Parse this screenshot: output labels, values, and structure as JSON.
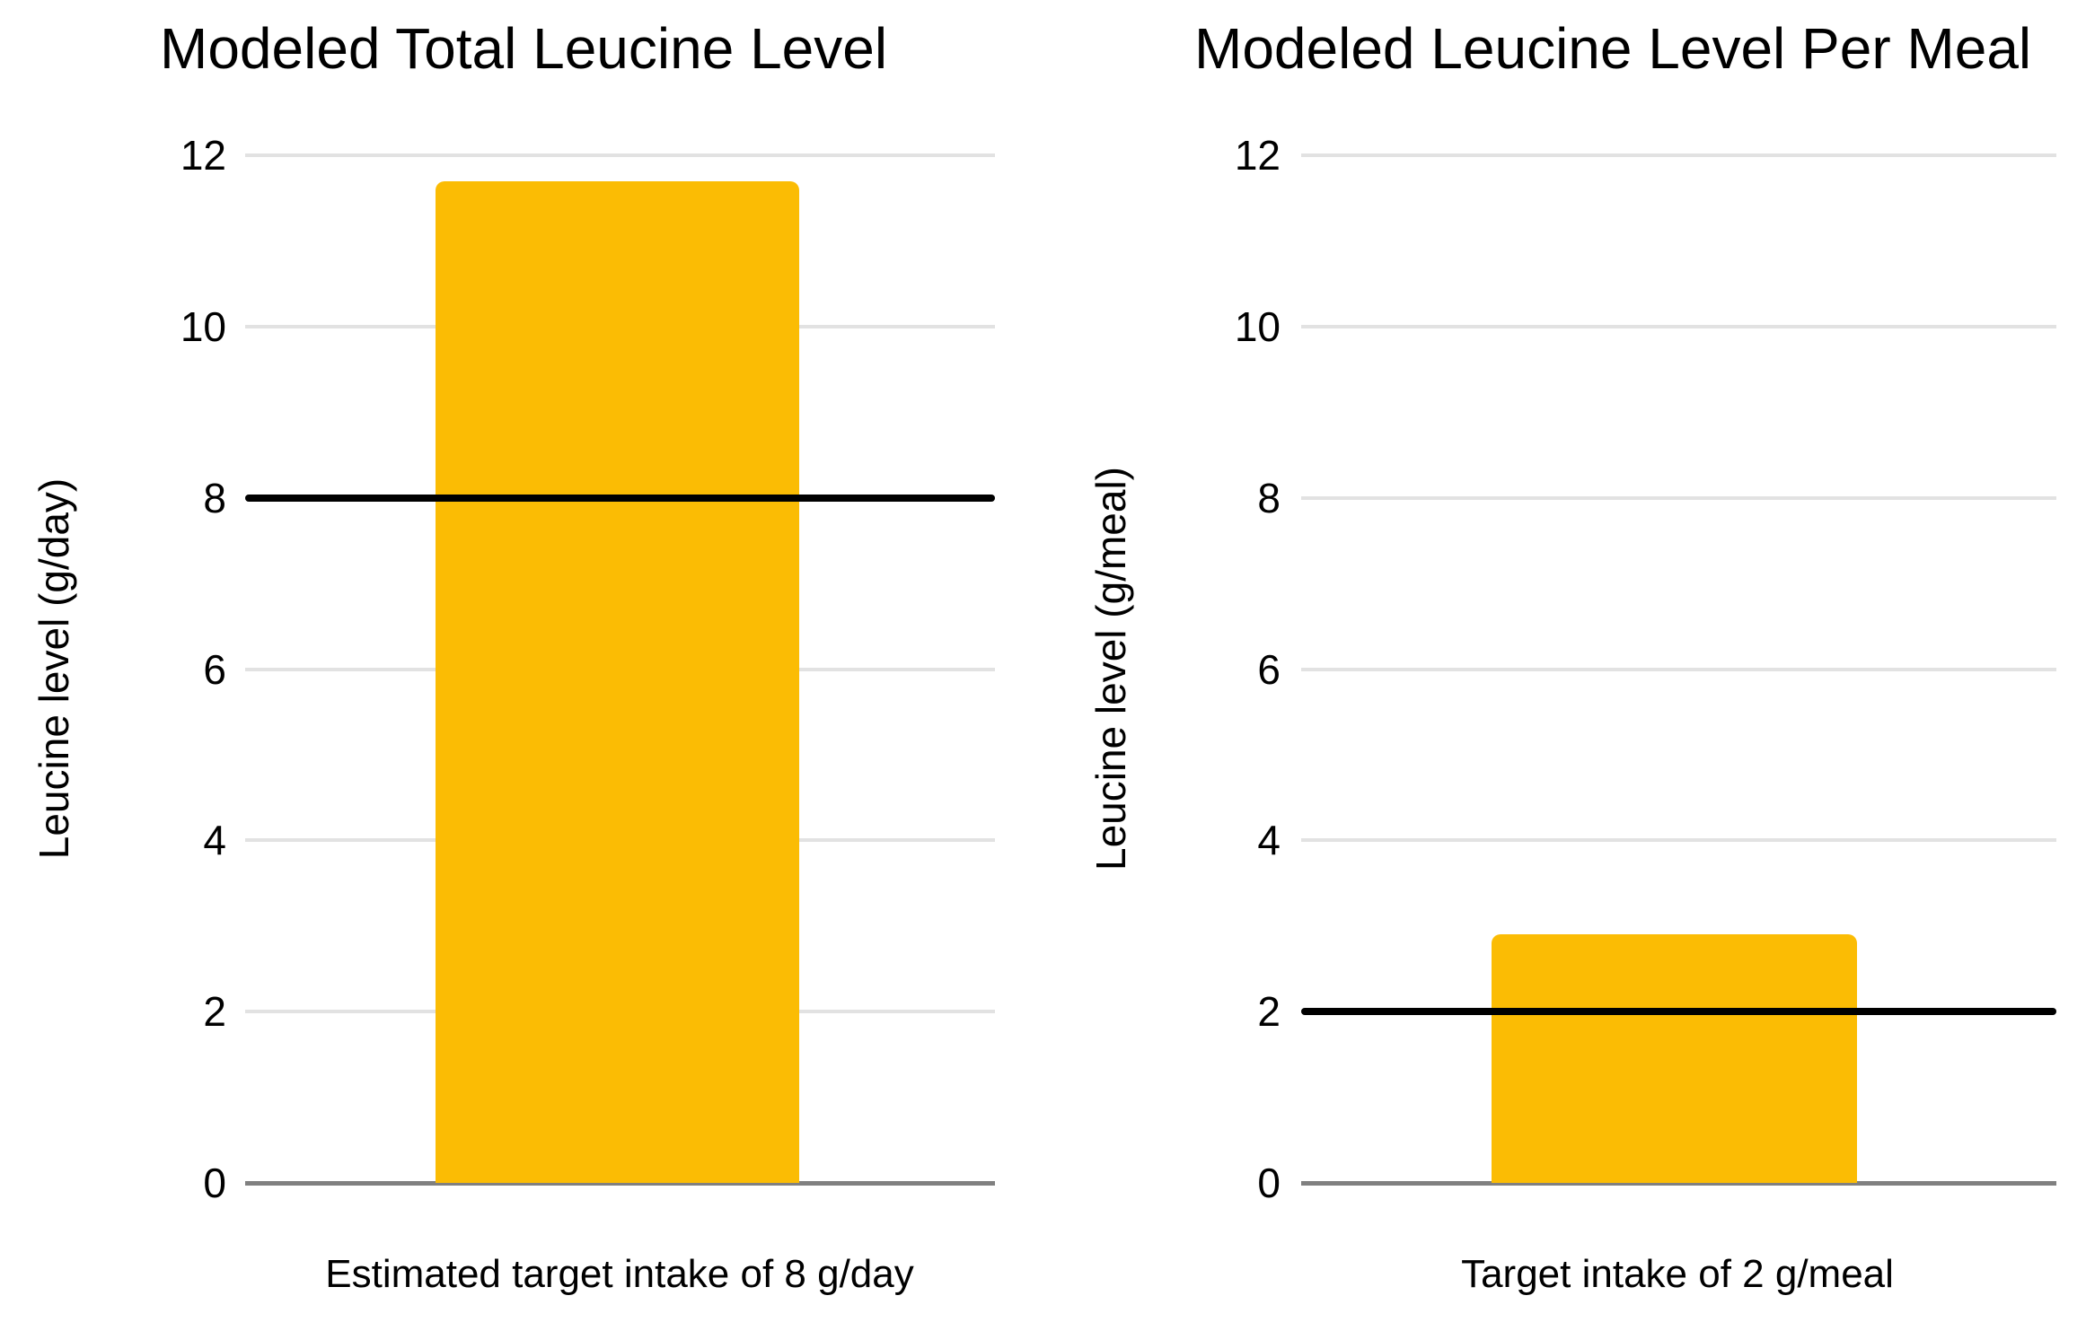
{
  "page": {
    "background_color": "#ffffff",
    "text_color": "#000000"
  },
  "chart_data": [
    {
      "type": "bar",
      "title": "Modeled Total Leucine Level",
      "xlabel": "",
      "ylabel": "Leucine level (g/day)",
      "categories": [
        "Estimated target intake of 8 g/day"
      ],
      "values": [
        11.7
      ],
      "ylim": [
        0,
        12
      ],
      "ytick_step": 2,
      "ytick_labels": [
        "0",
        "2",
        "4",
        "6",
        "8",
        "10",
        "12"
      ],
      "grid": true,
      "legend": "none",
      "bar_color": "#fbbc04",
      "reference_line": {
        "value": 8,
        "color": "#000000",
        "meaning": "target intake 8 g/day"
      },
      "gridline_color": "#e2e2e2",
      "zero_axis_color": "#808080"
    },
    {
      "type": "bar",
      "title": "Modeled Leucine Level Per Meal",
      "xlabel": "",
      "ylabel": "Leucine level (g/meal)",
      "categories": [
        "Target intake of 2 g/meal"
      ],
      "values": [
        2.9
      ],
      "ylim": [
        0,
        12
      ],
      "ytick_step": 2,
      "ytick_labels": [
        "0",
        "2",
        "4",
        "6",
        "8",
        "10",
        "12"
      ],
      "grid": true,
      "legend": "none",
      "bar_color": "#fbbc04",
      "reference_line": {
        "value": 2,
        "color": "#000000",
        "meaning": "target intake 2 g/meal"
      },
      "gridline_color": "#e2e2e2",
      "zero_axis_color": "#808080"
    }
  ]
}
